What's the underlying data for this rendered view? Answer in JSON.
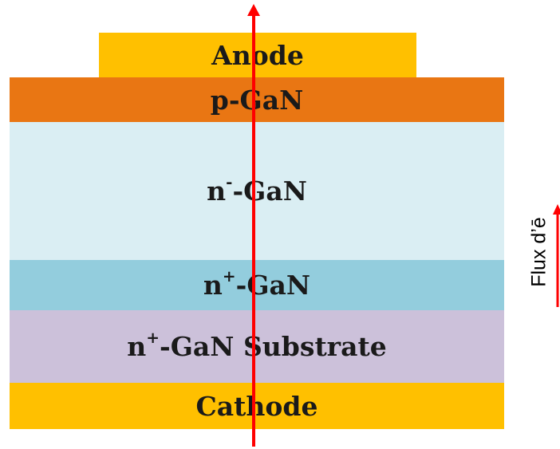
{
  "layers": {
    "anode": "Anode",
    "p_gan": "p-GaN",
    "n_minus_gan": {
      "base": "n",
      "sup": "-",
      "rest": "-GaN"
    },
    "n_plus_gan": {
      "base": "n",
      "sup": "+",
      "rest": "-GaN"
    },
    "substrate": {
      "base": "n",
      "sup": "+",
      "rest": "-GaN Substrate"
    },
    "cathode": "Cathode"
  },
  "flux_label": "Flux d’ē",
  "colors": {
    "anode": "#FFC000",
    "p_gan": "#E97613",
    "n_minus_gan": "#DAEEF3",
    "n_plus_gan": "#93CDDD",
    "substrate": "#CCC1DA",
    "cathode": "#FFC000",
    "arrow": "#FF0000"
  }
}
